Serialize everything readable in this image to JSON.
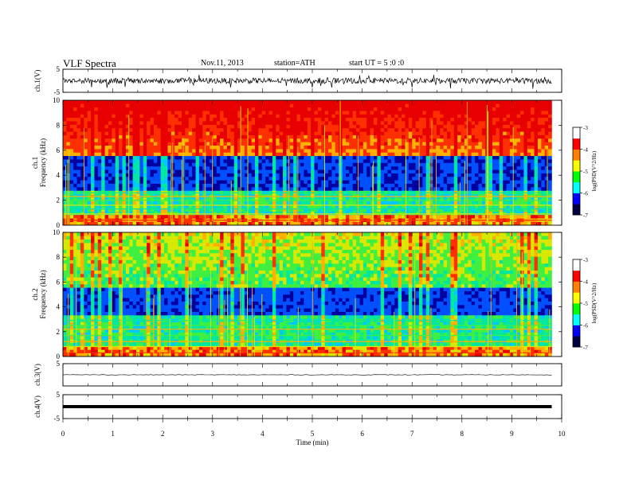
{
  "header": {
    "title": "VLF Spectra",
    "date": "Nov.11, 2013",
    "station": "station=ATH",
    "start": "start UT = 5 :0 :0"
  },
  "colors": {
    "spectrogram_palette": [
      "#00003c",
      "#0000a0",
      "#0050ff",
      "#00c8ff",
      "#00e8a0",
      "#40f040",
      "#d8e800",
      "#ffb000",
      "#ff3000",
      "#e80000"
    ],
    "colorbar_palette": [
      "#000040",
      "#0000ff",
      "#00ffff",
      "#00ff00",
      "#ffff00",
      "#ff8000",
      "#ff0000",
      "#ffffff"
    ],
    "trace": "#000000"
  },
  "chart_data": [
    {
      "type": "line",
      "panel": "ch1-waveform",
      "ylabel": "ch.1(V)",
      "ylim": [
        -5,
        5
      ],
      "yticks": [
        "5",
        "-5"
      ],
      "xlim": [
        0,
        10
      ],
      "description_level_volts": 0,
      "noise_amplitude_volts": 1.2
    },
    {
      "type": "heatmap",
      "panel": "ch1-spectrogram",
      "ylabel": [
        "ch.1",
        "Frequency (kHz)"
      ],
      "ylim": [
        0,
        10
      ],
      "yticks": [
        "0",
        "2",
        "4",
        "6",
        "8",
        "10"
      ],
      "xlim": [
        0,
        9.8
      ],
      "colorbar": {
        "label": "log(PSD(V^2/Hz)",
        "ticks": [
          "-3",
          "-4",
          "-5",
          "-6",
          "-7"
        ],
        "range": [
          -7,
          -3
        ]
      }
    },
    {
      "type": "heatmap",
      "panel": "ch2-spectrogram",
      "ylabel": [
        "ch.2",
        "Frequency (kHz)"
      ],
      "ylim": [
        0,
        10
      ],
      "yticks": [
        "0",
        "2",
        "4",
        "6",
        "8",
        "10"
      ],
      "xlim": [
        0,
        9.8
      ],
      "colorbar": {
        "label": "log(PSD(V^2/Hz)",
        "ticks": [
          "-3",
          "-4",
          "-5",
          "-6",
          "-7"
        ],
        "range": [
          -7,
          -3
        ]
      }
    },
    {
      "type": "line",
      "panel": "ch3-waveform",
      "ylabel": "ch.3(V)",
      "ylim": [
        -5,
        5
      ],
      "yticks": [
        "5"
      ],
      "xlim": [
        0,
        10
      ],
      "level_volts": 0
    },
    {
      "type": "line",
      "panel": "ch4-waveform",
      "ylabel": "ch.4(V)",
      "ylim": [
        -5,
        5
      ],
      "yticks": [
        "5",
        "-5"
      ],
      "xlim": [
        0,
        10
      ],
      "level_volts": 0
    }
  ],
  "xaxis": {
    "label": "Time (min)",
    "ticks": [
      "0",
      "1",
      "2",
      "3",
      "4",
      "5",
      "6",
      "7",
      "8",
      "9",
      "10"
    ],
    "range": [
      0,
      10
    ]
  }
}
